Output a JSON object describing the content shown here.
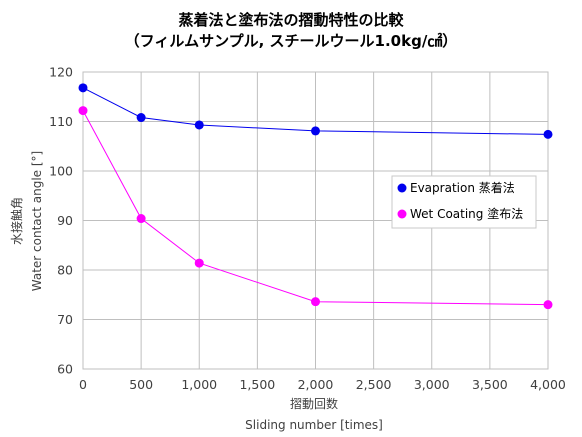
{
  "chart_data": {
    "type": "line",
    "title_line1": "蒸着法と塗布法の摺動特性の比較",
    "title_line2": "（フィルムサンプル, スチールウール1.0kg/㎠）",
    "xlabel_jp": "摺動回数",
    "xlabel_en": "Sliding number [times]",
    "ylabel_jp": "水接触角",
    "ylabel_en": "Water contact angle  [°]",
    "xlim": [
      0,
      4000
    ],
    "ylim": [
      60,
      120
    ],
    "x_ticks": [
      0,
      500,
      1000,
      1500,
      2000,
      2500,
      3000,
      3500,
      4000
    ],
    "x_tick_labels": [
      "0",
      "500",
      "1,000",
      "1,500",
      "2,000",
      "2,500",
      "3,000",
      "3,500",
      "4,000"
    ],
    "y_ticks": [
      60,
      70,
      80,
      90,
      100,
      110,
      120
    ],
    "y_tick_labels": [
      "60",
      "70",
      "80",
      "90",
      "100",
      "110",
      "120"
    ],
    "grid": true,
    "legend_position": "right",
    "series": [
      {
        "name": "Evapration 蒸着法",
        "color": "#0000ee",
        "x": [
          0,
          500,
          1000,
          2000,
          4000
        ],
        "values": [
          116.8,
          110.8,
          109.3,
          108.1,
          107.4
        ]
      },
      {
        "name": "Wet Coating 塗布法",
        "color": "#ff00ff",
        "x": [
          0,
          500,
          1000,
          2000,
          4000
        ],
        "values": [
          112.2,
          90.4,
          81.4,
          73.6,
          73.0
        ]
      }
    ]
  }
}
